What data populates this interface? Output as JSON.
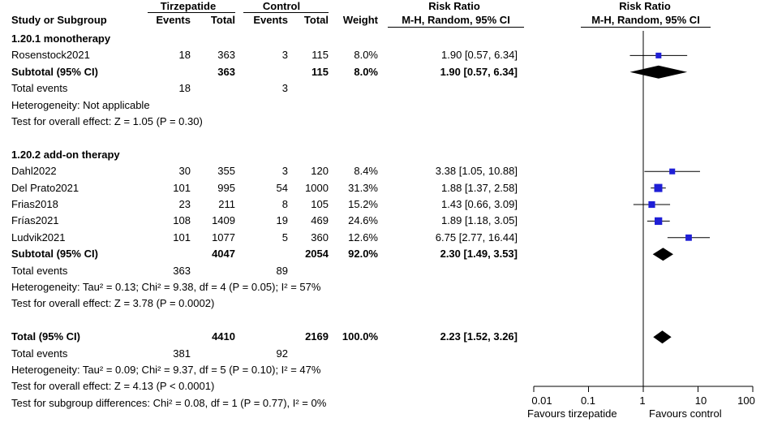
{
  "header": {
    "group_tirz": "Tirzepatide",
    "group_ctrl": "Control",
    "rr_title": "Risk Ratio",
    "plot_title": "Risk Ratio",
    "col_study": "Study or Subgroup",
    "col_events_t": "Events",
    "col_total_t": "Total",
    "col_events_c": "Events",
    "col_total_c": "Total",
    "col_weight": "Weight",
    "col_method": "M-H, Random, 95% CI",
    "plot_method": "M-H, Random, 95% CI"
  },
  "rows": [
    {
      "kind": "heading",
      "label": "1.20.1 monotherapy"
    },
    {
      "kind": "study",
      "label": "Rosenstock2021",
      "et": "18",
      "tt": "363",
      "ec": "3",
      "tc": "115",
      "w": "8.0%",
      "ci": "1.90 [0.57, 6.34]"
    },
    {
      "kind": "subtotal",
      "label": "Subtotal (95% CI)",
      "tt": "363",
      "tc": "115",
      "w": "8.0%",
      "ci": "1.90 [0.57, 6.34]"
    },
    {
      "kind": "events",
      "label": "Total events",
      "et": "18",
      "ec": "3"
    },
    {
      "kind": "note",
      "label": "Heterogeneity: Not applicable"
    },
    {
      "kind": "note",
      "label": "Test for overall effect: Z = 1.05 (P = 0.30)"
    },
    {
      "kind": "blank"
    },
    {
      "kind": "heading",
      "label": "1.20.2 add-on therapy"
    },
    {
      "kind": "study",
      "label": "Dahl2022",
      "et": "30",
      "tt": "355",
      "ec": "3",
      "tc": "120",
      "w": "8.4%",
      "ci": "3.38 [1.05, 10.88]"
    },
    {
      "kind": "study",
      "label": "Del Prato2021",
      "et": "101",
      "tt": "995",
      "ec": "54",
      "tc": "1000",
      "w": "31.3%",
      "ci": "1.88 [1.37, 2.58]"
    },
    {
      "kind": "study",
      "label": "Frias2018",
      "et": "23",
      "tt": "211",
      "ec": "8",
      "tc": "105",
      "w": "15.2%",
      "ci": "1.43 [0.66, 3.09]"
    },
    {
      "kind": "study",
      "label": "Frías2021",
      "et": "108",
      "tt": "1409",
      "ec": "19",
      "tc": "469",
      "w": "24.6%",
      "ci": "1.89 [1.18, 3.05]"
    },
    {
      "kind": "study",
      "label": "Ludvik2021",
      "et": "101",
      "tt": "1077",
      "ec": "5",
      "tc": "360",
      "w": "12.6%",
      "ci": "6.75 [2.77, 16.44]"
    },
    {
      "kind": "subtotal",
      "label": "Subtotal (95% CI)",
      "tt": "4047",
      "tc": "2054",
      "w": "92.0%",
      "ci": "2.30 [1.49, 3.53]"
    },
    {
      "kind": "events",
      "label": "Total events",
      "et": "363",
      "ec": "89"
    },
    {
      "kind": "note",
      "label": "Heterogeneity: Tau² = 0.13; Chi² = 9.38, df = 4 (P = 0.05); I² = 57%"
    },
    {
      "kind": "note",
      "label": "Test for overall effect: Z = 3.78 (P = 0.0002)"
    },
    {
      "kind": "blank"
    },
    {
      "kind": "subtotal",
      "label": "Total (95% CI)",
      "tt": "4410",
      "tc": "2169",
      "w": "100.0%",
      "ci": "2.23 [1.52, 3.26]"
    },
    {
      "kind": "events",
      "label": "Total events",
      "et": "381",
      "ec": "92"
    },
    {
      "kind": "note",
      "label": "Heterogeneity: Tau² = 0.09; Chi² = 9.37, df = 5 (P = 0.10); I² = 47%"
    },
    {
      "kind": "note",
      "label": "Test for overall effect: Z = 4.13 (P < 0.0001)"
    },
    {
      "kind": "note",
      "label": "Test for subgroup differences: Chi² = 0.08, df = 1 (P = 0.77), I² = 0%"
    }
  ],
  "axis": {
    "ticks": [
      "0.01",
      "0.1",
      "1",
      "10",
      "100"
    ],
    "left_label": "Favours tirzepatide",
    "right_label": "Favours control"
  },
  "chart_data": {
    "type": "scatter",
    "title": "Risk Ratio",
    "subtitle": "M-H, Random, 95% CI",
    "x_scale": "log",
    "xlim": [
      0.01,
      100
    ],
    "reference_line": 1,
    "studies": [
      {
        "name": "Rosenstock2021",
        "rr": 1.9,
        "low": 0.57,
        "high": 6.34,
        "weight": 8.0
      },
      {
        "name": "Dahl2022",
        "rr": 3.38,
        "low": 1.05,
        "high": 10.88,
        "weight": 8.4
      },
      {
        "name": "Del Prato2021",
        "rr": 1.88,
        "low": 1.37,
        "high": 2.58,
        "weight": 31.3
      },
      {
        "name": "Frias2018",
        "rr": 1.43,
        "low": 0.66,
        "high": 3.09,
        "weight": 15.2
      },
      {
        "name": "Frías2021",
        "rr": 1.89,
        "low": 1.18,
        "high": 3.05,
        "weight": 24.6
      },
      {
        "name": "Ludvik2021",
        "rr": 6.75,
        "low": 2.77,
        "high": 16.44,
        "weight": 12.6
      }
    ],
    "diamonds": [
      {
        "name": "Subtotal (95% CI)",
        "rr": 1.9,
        "low": 0.57,
        "high": 6.34
      },
      {
        "name": "Subtotal (95% CI)",
        "rr": 2.3,
        "low": 1.49,
        "high": 3.53
      },
      {
        "name": "Total (95% CI)",
        "rr": 2.23,
        "low": 1.52,
        "high": 3.26
      }
    ],
    "legend": [
      "Favours tirzepatide",
      "Favours control"
    ]
  }
}
